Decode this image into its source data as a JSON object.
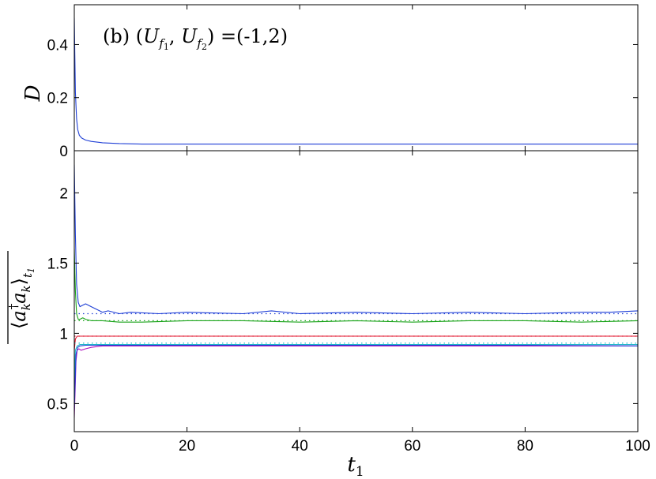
{
  "chart_data": [
    {
      "type": "line",
      "panel": "top",
      "annotation": "(b) (U_f1, U_f2) =(-1,2)",
      "ylabel": "D",
      "xlabel": "",
      "xlim": [
        0,
        100
      ],
      "ylim": [
        0,
        0.55
      ],
      "yticks": [
        0,
        0.2,
        0.4
      ],
      "ytick_labels": [
        "0",
        "0.2",
        "0.4"
      ],
      "grid": false,
      "series": [
        {
          "color": "#1f3fd6",
          "style": "solid",
          "x": [
            0,
            0.1,
            0.2,
            0.4,
            0.6,
            0.9,
            1.3,
            2,
            3,
            5,
            8,
            12,
            20,
            30,
            40,
            50,
            60,
            70,
            80,
            90,
            100
          ],
          "y": [
            0.5,
            0.36,
            0.22,
            0.12,
            0.08,
            0.058,
            0.048,
            0.04,
            0.035,
            0.03,
            0.027,
            0.025,
            0.025,
            0.025,
            0.025,
            0.025,
            0.025,
            0.025,
            0.025,
            0.025,
            0.025
          ]
        }
      ]
    },
    {
      "type": "line",
      "panel": "bottom",
      "ylabel": "⟨a_k† a_k⟩_t1 (overlined)",
      "xlabel": "t_1",
      "xlim": [
        0,
        100
      ],
      "ylim": [
        0.3,
        2.3
      ],
      "xticks": [
        0,
        20,
        40,
        60,
        80,
        100
      ],
      "xtick_labels": [
        "0",
        "20",
        "40",
        "60",
        "80",
        "100"
      ],
      "yticks": [
        0.5,
        1,
        1.5,
        2
      ],
      "ytick_labels": [
        "0.5",
        "1",
        "1.5",
        "2"
      ],
      "grid": false,
      "series": [
        {
          "color": "#1f3fd6",
          "style": "solid",
          "x": [
            0,
            0.2,
            0.4,
            0.7,
            1,
            1.5,
            2,
            3,
            4,
            5,
            6,
            8,
            10,
            15,
            20,
            30,
            35,
            40,
            50,
            60,
            70,
            80,
            90,
            95,
            100
          ],
          "y": [
            2.2,
            1.7,
            1.35,
            1.22,
            1.19,
            1.2,
            1.21,
            1.19,
            1.17,
            1.15,
            1.16,
            1.14,
            1.15,
            1.14,
            1.15,
            1.14,
            1.16,
            1.14,
            1.15,
            1.14,
            1.15,
            1.14,
            1.15,
            1.15,
            1.16
          ]
        },
        {
          "color": "#1f3fd6",
          "style": "dotted",
          "x": [
            0,
            2,
            100
          ],
          "y": [
            1.14,
            1.14,
            1.14
          ]
        },
        {
          "color": "#1aa31a",
          "style": "solid",
          "x": [
            0,
            0.2,
            0.4,
            0.7,
            1,
            1.5,
            2,
            3,
            5,
            8,
            12,
            20,
            30,
            40,
            50,
            60,
            70,
            80,
            90,
            100
          ],
          "y": [
            1.6,
            1.3,
            1.14,
            1.1,
            1.1,
            1.11,
            1.1,
            1.09,
            1.09,
            1.08,
            1.08,
            1.09,
            1.09,
            1.08,
            1.09,
            1.08,
            1.09,
            1.09,
            1.08,
            1.09
          ]
        },
        {
          "color": "#1aa31a",
          "style": "dotted",
          "x": [
            0,
            2,
            100
          ],
          "y": [
            1.09,
            1.09,
            1.09
          ]
        },
        {
          "color": "#e0102a",
          "style": "solid",
          "x": [
            0,
            0.2,
            0.5,
            1,
            2,
            5,
            10,
            20,
            40,
            60,
            80,
            100
          ],
          "y": [
            0.88,
            0.96,
            0.98,
            0.98,
            0.98,
            0.98,
            0.98,
            0.98,
            0.98,
            0.98,
            0.98,
            0.98
          ]
        },
        {
          "color": "#e0102a",
          "style": "dotted",
          "x": [
            0,
            100
          ],
          "y": [
            0.98,
            0.98
          ]
        },
        {
          "color": "#1fb8c9",
          "style": "solid",
          "x": [
            0,
            0.2,
            0.5,
            1,
            2,
            5,
            10,
            20,
            40,
            60,
            80,
            100
          ],
          "y": [
            0.6,
            0.88,
            0.91,
            0.92,
            0.92,
            0.92,
            0.92,
            0.92,
            0.92,
            0.92,
            0.92,
            0.92
          ]
        },
        {
          "color": "#1fb8c9",
          "style": "dotted",
          "x": [
            0,
            100
          ],
          "y": [
            0.93,
            0.93
          ]
        },
        {
          "color": "#b010c0",
          "style": "solid",
          "x": [
            0,
            0.15,
            0.3,
            0.5,
            0.8,
            1.2,
            2,
            3,
            5,
            10,
            20,
            40,
            60,
            80,
            100
          ],
          "y": [
            0.4,
            0.6,
            0.8,
            0.88,
            0.89,
            0.88,
            0.89,
            0.9,
            0.91,
            0.91,
            0.91,
            0.91,
            0.91,
            0.91,
            0.91
          ]
        },
        {
          "color": "#1f3fd6",
          "style": "solid",
          "x": [
            0,
            0.3,
            0.6,
            1,
            2,
            5,
            10,
            20,
            40,
            60,
            80,
            100
          ],
          "y": [
            0.45,
            0.85,
            0.9,
            0.91,
            0.915,
            0.915,
            0.915,
            0.915,
            0.915,
            0.915,
            0.915,
            0.91
          ]
        }
      ]
    }
  ]
}
